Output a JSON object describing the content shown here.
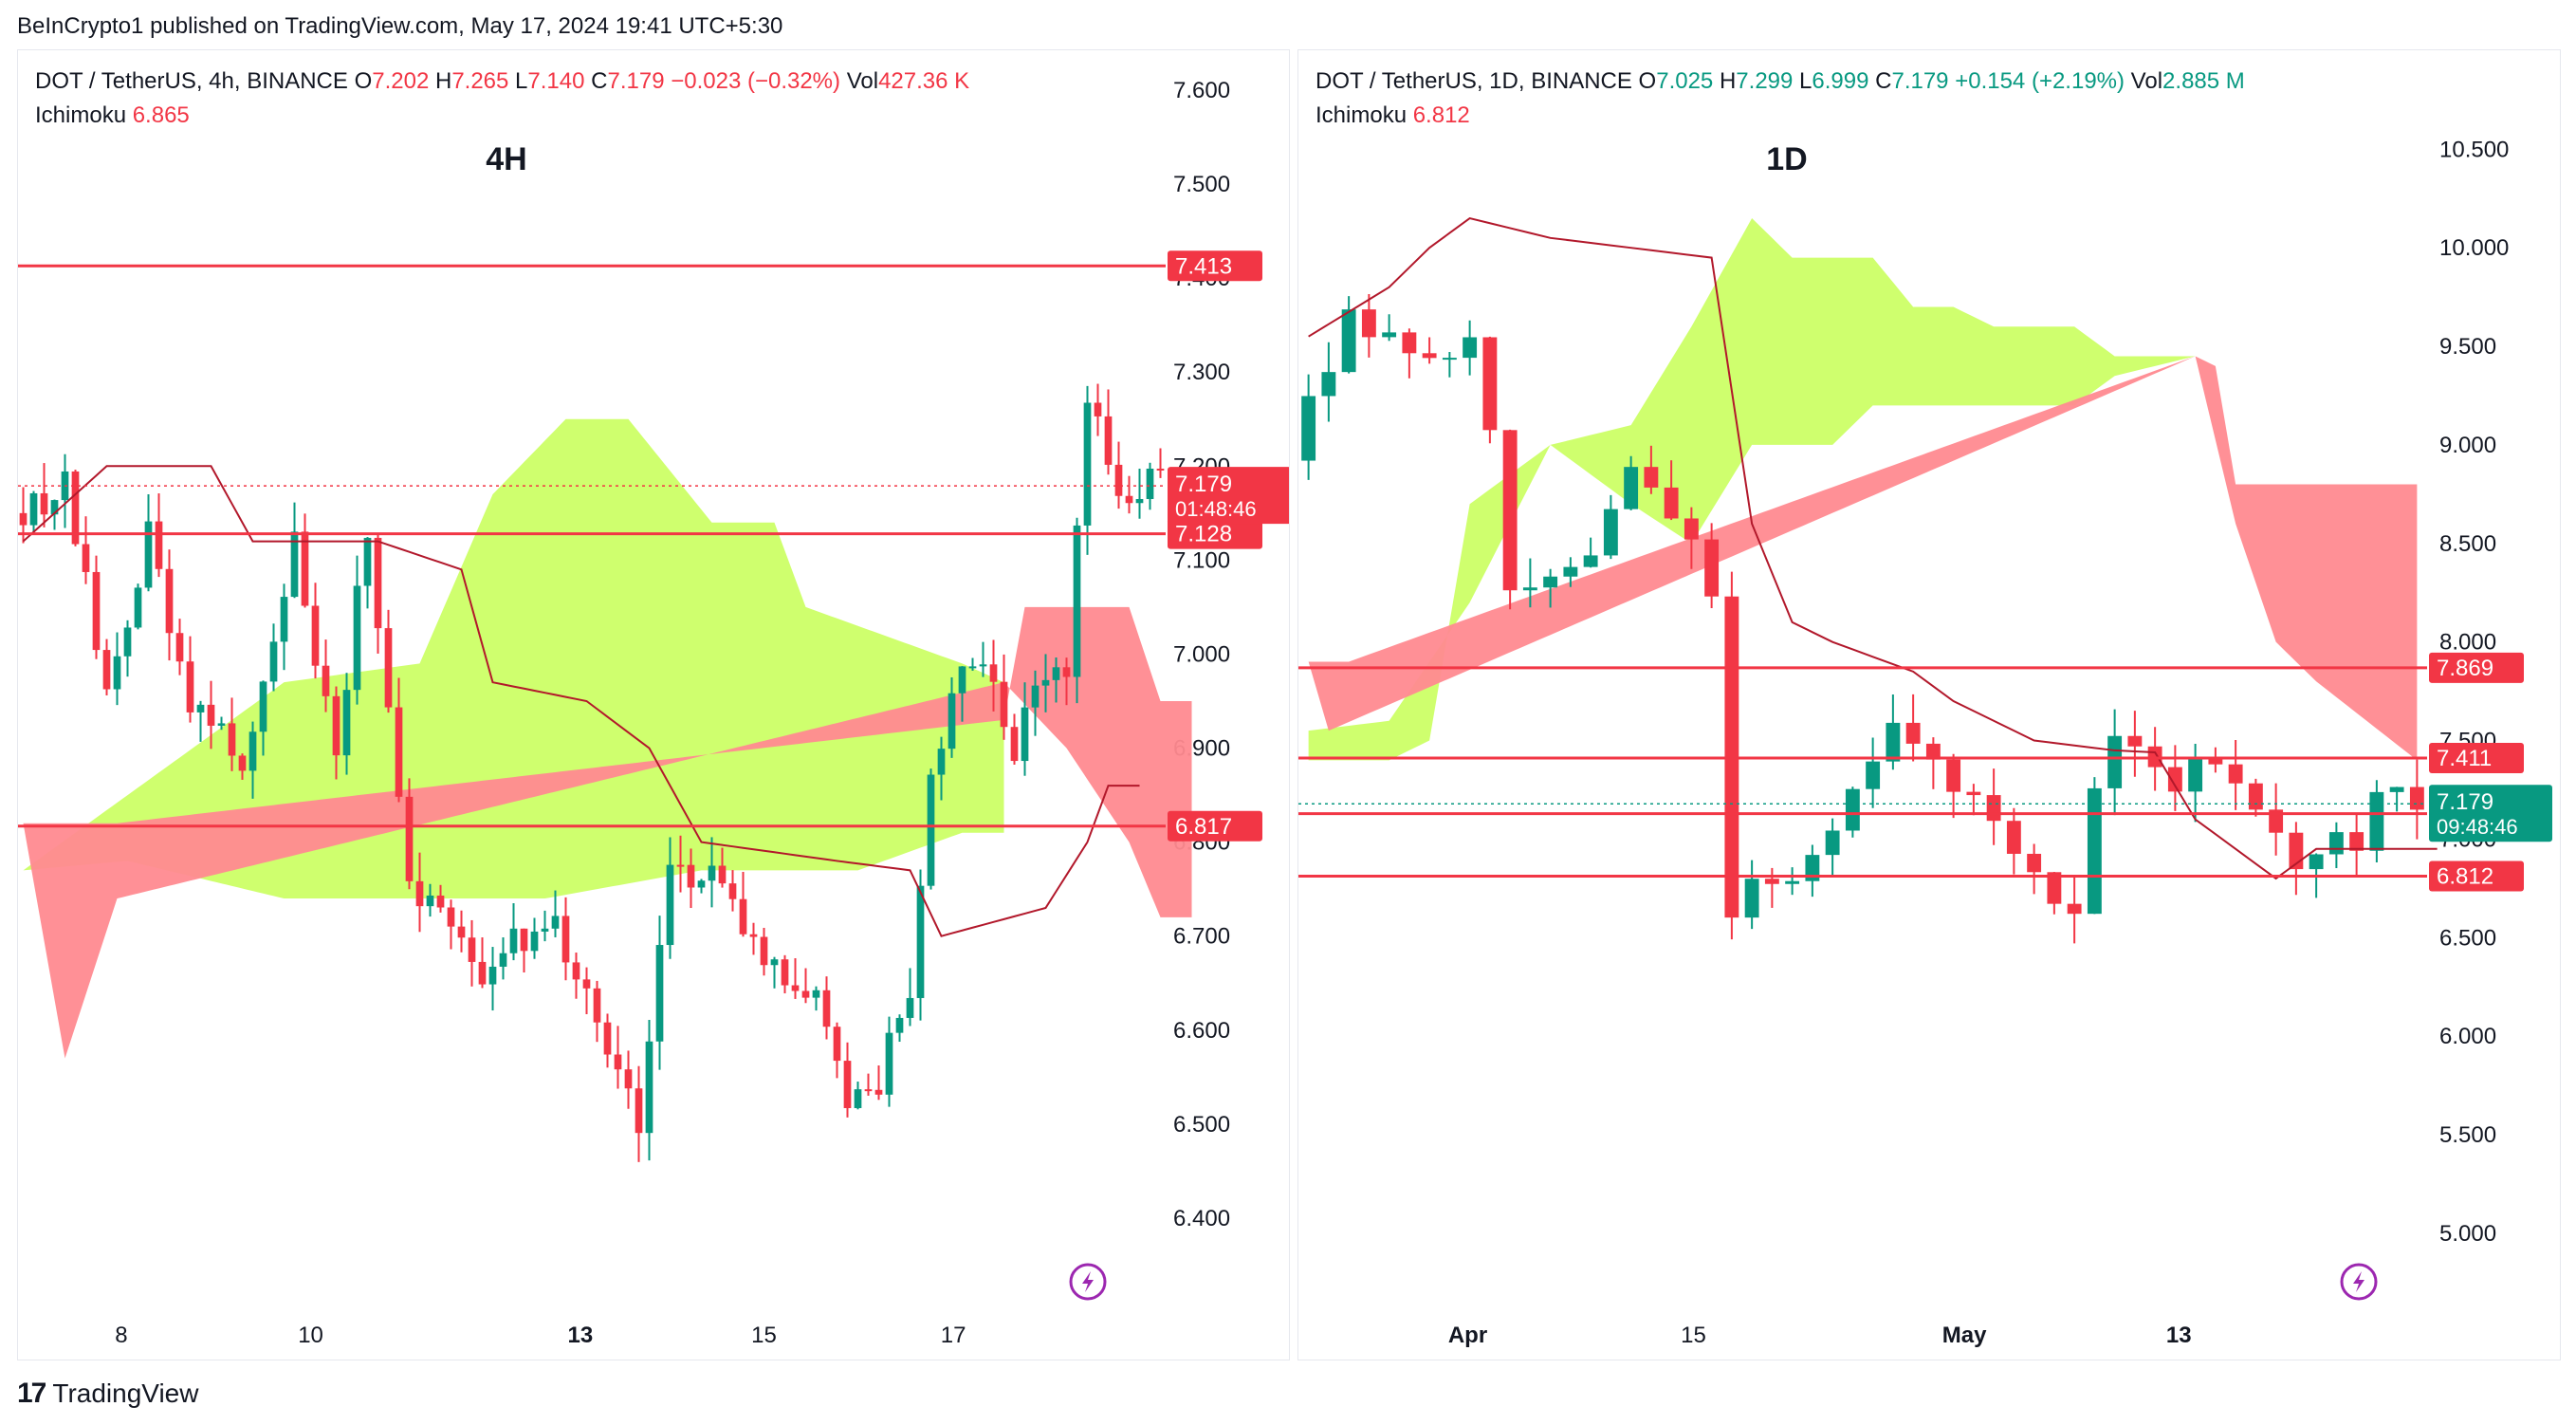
{
  "header": {
    "published": "BeInCrypto1 published on TradingView.com, May 17, 2024 19:41 UTC+5:30"
  },
  "footer": {
    "brand": "TradingView",
    "logo_glyph": "17"
  },
  "colors": {
    "up": "#089981",
    "down": "#f23645",
    "cloud_bull": "#ccff66",
    "cloud_bear": "#ff8a90",
    "ichimoku_line": "#b2182b",
    "level": "#f23645",
    "grid": "#f0f3fa"
  },
  "chart_data": [
    {
      "type": "candlestick",
      "title": "4H",
      "symbol": "DOT / TetherUS, 4h, BINANCE",
      "ohlc": {
        "O": "7.202",
        "H": "7.265",
        "L": "7.140",
        "C": "7.179",
        "change": "−0.023 (−0.32%)",
        "vol": "427.36 K"
      },
      "indicator": {
        "name": "Ichimoku",
        "value": "6.865"
      },
      "ylim": [
        6.3,
        7.6
      ],
      "y_ticks": [
        "7.600",
        "7.500",
        "7.400",
        "7.300",
        "7.200",
        "7.100",
        "7.000",
        "6.900",
        "6.800",
        "6.700",
        "6.600",
        "6.500",
        "6.400"
      ],
      "x_ticks": [
        {
          "label": "8",
          "pos": 0.09
        },
        {
          "label": "10",
          "pos": 0.255
        },
        {
          "label": "13",
          "pos": 0.49
        },
        {
          "label": "15",
          "pos": 0.65
        },
        {
          "label": "17",
          "pos": 0.815
        }
      ],
      "levels": [
        7.413,
        7.128,
        6.817
      ],
      "price_label": {
        "value": "7.179",
        "countdown": "01:48:46"
      },
      "n_candles": 110,
      "anchors": [
        [
          0,
          7.15
        ],
        [
          5,
          7.18
        ],
        [
          9,
          6.96
        ],
        [
          13,
          7.13
        ],
        [
          17,
          6.95
        ],
        [
          22,
          6.88
        ],
        [
          27,
          7.12
        ],
        [
          31,
          6.88
        ],
        [
          34,
          7.14
        ],
        [
          38,
          6.76
        ],
        [
          45,
          6.66
        ],
        [
          51,
          6.72
        ],
        [
          55,
          6.65
        ],
        [
          60,
          6.5
        ],
        [
          63,
          6.76
        ],
        [
          67,
          6.77
        ],
        [
          72,
          6.68
        ],
        [
          78,
          6.62
        ],
        [
          80,
          6.51
        ],
        [
          83,
          6.55
        ],
        [
          86,
          6.65
        ],
        [
          88,
          6.87
        ],
        [
          91,
          7.0
        ],
        [
          94,
          6.97
        ],
        [
          96,
          6.9
        ],
        [
          99,
          6.99
        ],
        [
          101,
          6.99
        ],
        [
          103,
          7.27
        ],
        [
          106,
          7.18
        ]
      ],
      "tenkan": [
        [
          0,
          7.12
        ],
        [
          8,
          7.2
        ],
        [
          18,
          7.2
        ],
        [
          22,
          7.12
        ],
        [
          34,
          7.12
        ],
        [
          42,
          7.09
        ],
        [
          45,
          6.97
        ],
        [
          54,
          6.95
        ],
        [
          60,
          6.9
        ],
        [
          65,
          6.8
        ],
        [
          78,
          6.78
        ],
        [
          85,
          6.77
        ],
        [
          88,
          6.7
        ],
        [
          98,
          6.73
        ],
        [
          102,
          6.8
        ],
        [
          104,
          6.86
        ],
        [
          107,
          6.86
        ]
      ],
      "cloud_bull_top": [
        [
          0,
          6.77
        ],
        [
          10,
          6.85
        ],
        [
          25,
          6.97
        ],
        [
          38,
          6.99
        ],
        [
          45,
          7.17
        ],
        [
          52,
          7.25
        ],
        [
          58,
          7.25
        ],
        [
          66,
          7.14
        ],
        [
          72,
          7.14
        ],
        [
          75,
          7.05
        ],
        [
          90,
          6.99
        ],
        [
          94,
          6.97
        ]
      ],
      "cloud_bull_bot": [
        [
          0,
          6.77
        ],
        [
          10,
          6.78
        ],
        [
          25,
          6.74
        ],
        [
          50,
          6.74
        ],
        [
          65,
          6.77
        ],
        [
          80,
          6.77
        ],
        [
          90,
          6.81
        ],
        [
          94,
          6.81
        ]
      ],
      "cloud_bear_top": [
        [
          0,
          6.82
        ],
        [
          9,
          6.82
        ],
        [
          94,
          6.93
        ],
        [
          96,
          7.05
        ],
        [
          106,
          7.05
        ],
        [
          109,
          6.95
        ],
        [
          112,
          6.95
        ]
      ],
      "cloud_bear_bot": [
        [
          0,
          6.82
        ],
        [
          4,
          6.57
        ],
        [
          9,
          6.74
        ],
        [
          94,
          6.97
        ],
        [
          100,
          6.9
        ],
        [
          106,
          6.8
        ],
        [
          109,
          6.72
        ],
        [
          112,
          6.72
        ]
      ]
    },
    {
      "type": "candlestick",
      "title": "1D",
      "symbol": "DOT / TetherUS, 1D, BINANCE",
      "ohlc": {
        "O": "7.025",
        "H": "7.299",
        "L": "6.999",
        "C": "7.179",
        "change": "+0.154 (+2.19%)",
        "vol": "2.885 M"
      },
      "indicator": {
        "name": "Ichimoku",
        "value": "6.812"
      },
      "ylim": [
        4.6,
        10.8
      ],
      "y_ticks": [
        "10.500",
        "10.000",
        "9.500",
        "9.000",
        "8.500",
        "8.000",
        "7.500",
        "7.000",
        "6.500",
        "6.000",
        "5.500",
        "5.000"
      ],
      "x_ticks": [
        {
          "label": "Apr",
          "pos": 0.15
        },
        {
          "label": "15",
          "pos": 0.35
        },
        {
          "label": "May",
          "pos": 0.59
        },
        {
          "label": "13",
          "pos": 0.78
        }
      ],
      "levels": [
        7.869,
        7.411,
        7.129,
        6.812
      ],
      "price_label": {
        "value": "7.179",
        "countdown": "09:48:46"
      },
      "n_candles": 56,
      "anchors": [
        [
          0,
          8.92
        ],
        [
          3,
          9.7
        ],
        [
          6,
          9.4
        ],
        [
          9,
          9.5
        ],
        [
          10,
          9.15
        ],
        [
          11,
          8.2
        ],
        [
          13,
          8.4
        ],
        [
          15,
          8.35
        ],
        [
          17,
          8.85
        ],
        [
          19,
          8.6
        ],
        [
          20,
          8.5
        ],
        [
          21,
          8.3
        ],
        [
          22,
          6.58
        ],
        [
          23,
          6.8
        ],
        [
          26,
          6.9
        ],
        [
          28,
          7.3
        ],
        [
          30,
          7.6
        ],
        [
          33,
          7.3
        ],
        [
          36,
          6.9
        ],
        [
          38,
          6.7
        ],
        [
          39,
          6.7
        ],
        [
          40,
          7.3
        ],
        [
          41,
          7.55
        ],
        [
          43,
          7.3
        ],
        [
          46,
          7.35
        ],
        [
          48,
          7.1
        ],
        [
          50,
          6.8
        ],
        [
          51,
          6.9
        ],
        [
          53,
          7.0
        ],
        [
          54,
          7.2
        ],
        [
          55,
          7.18
        ]
      ],
      "tenkan": [
        [
          0,
          9.55
        ],
        [
          4,
          9.8
        ],
        [
          6,
          10.0
        ],
        [
          8,
          10.15
        ],
        [
          12,
          10.05
        ],
        [
          16,
          10.0
        ],
        [
          20,
          9.95
        ],
        [
          22,
          8.6
        ],
        [
          24,
          8.1
        ],
        [
          26,
          8.0
        ],
        [
          30,
          7.85
        ],
        [
          32,
          7.7
        ],
        [
          36,
          7.5
        ],
        [
          40,
          7.45
        ],
        [
          42,
          7.44
        ],
        [
          44,
          7.1
        ],
        [
          46,
          6.95
        ],
        [
          48,
          6.8
        ],
        [
          50,
          6.95
        ],
        [
          56,
          6.95
        ]
      ],
      "cloud_bull_top": [
        [
          0,
          7.55
        ],
        [
          4,
          7.6
        ],
        [
          8,
          8.2
        ],
        [
          12,
          9.0
        ],
        [
          16,
          9.1
        ],
        [
          19,
          9.6
        ],
        [
          22,
          10.15
        ],
        [
          24,
          9.95
        ],
        [
          28,
          9.95
        ],
        [
          30,
          9.7
        ],
        [
          32,
          9.7
        ],
        [
          34,
          9.6
        ],
        [
          38,
          9.6
        ],
        [
          40,
          9.45
        ],
        [
          44,
          9.45
        ]
      ],
      "cloud_bull_bot": [
        [
          0,
          7.4
        ],
        [
          4,
          7.4
        ],
        [
          6,
          7.5
        ],
        [
          8,
          8.7
        ],
        [
          12,
          9.0
        ],
        [
          16,
          8.7
        ],
        [
          19,
          8.5
        ],
        [
          22,
          9.0
        ],
        [
          24,
          9.0
        ],
        [
          26,
          9.0
        ],
        [
          28,
          9.2
        ],
        [
          32,
          9.2
        ],
        [
          34,
          9.2
        ],
        [
          38,
          9.2
        ],
        [
          40,
          9.35
        ],
        [
          44,
          9.45
        ]
      ],
      "cloud_bear_top": [
        [
          0,
          7.9
        ],
        [
          2,
          7.9
        ],
        [
          44,
          9.45
        ],
        [
          45,
          9.4
        ],
        [
          46,
          8.8
        ],
        [
          55,
          8.8
        ]
      ],
      "cloud_bear_bot": [
        [
          0,
          7.9
        ],
        [
          1,
          7.55
        ],
        [
          44,
          9.45
        ],
        [
          46,
          8.6
        ],
        [
          48,
          8.0
        ],
        [
          50,
          7.8
        ],
        [
          55,
          7.4
        ]
      ]
    }
  ]
}
